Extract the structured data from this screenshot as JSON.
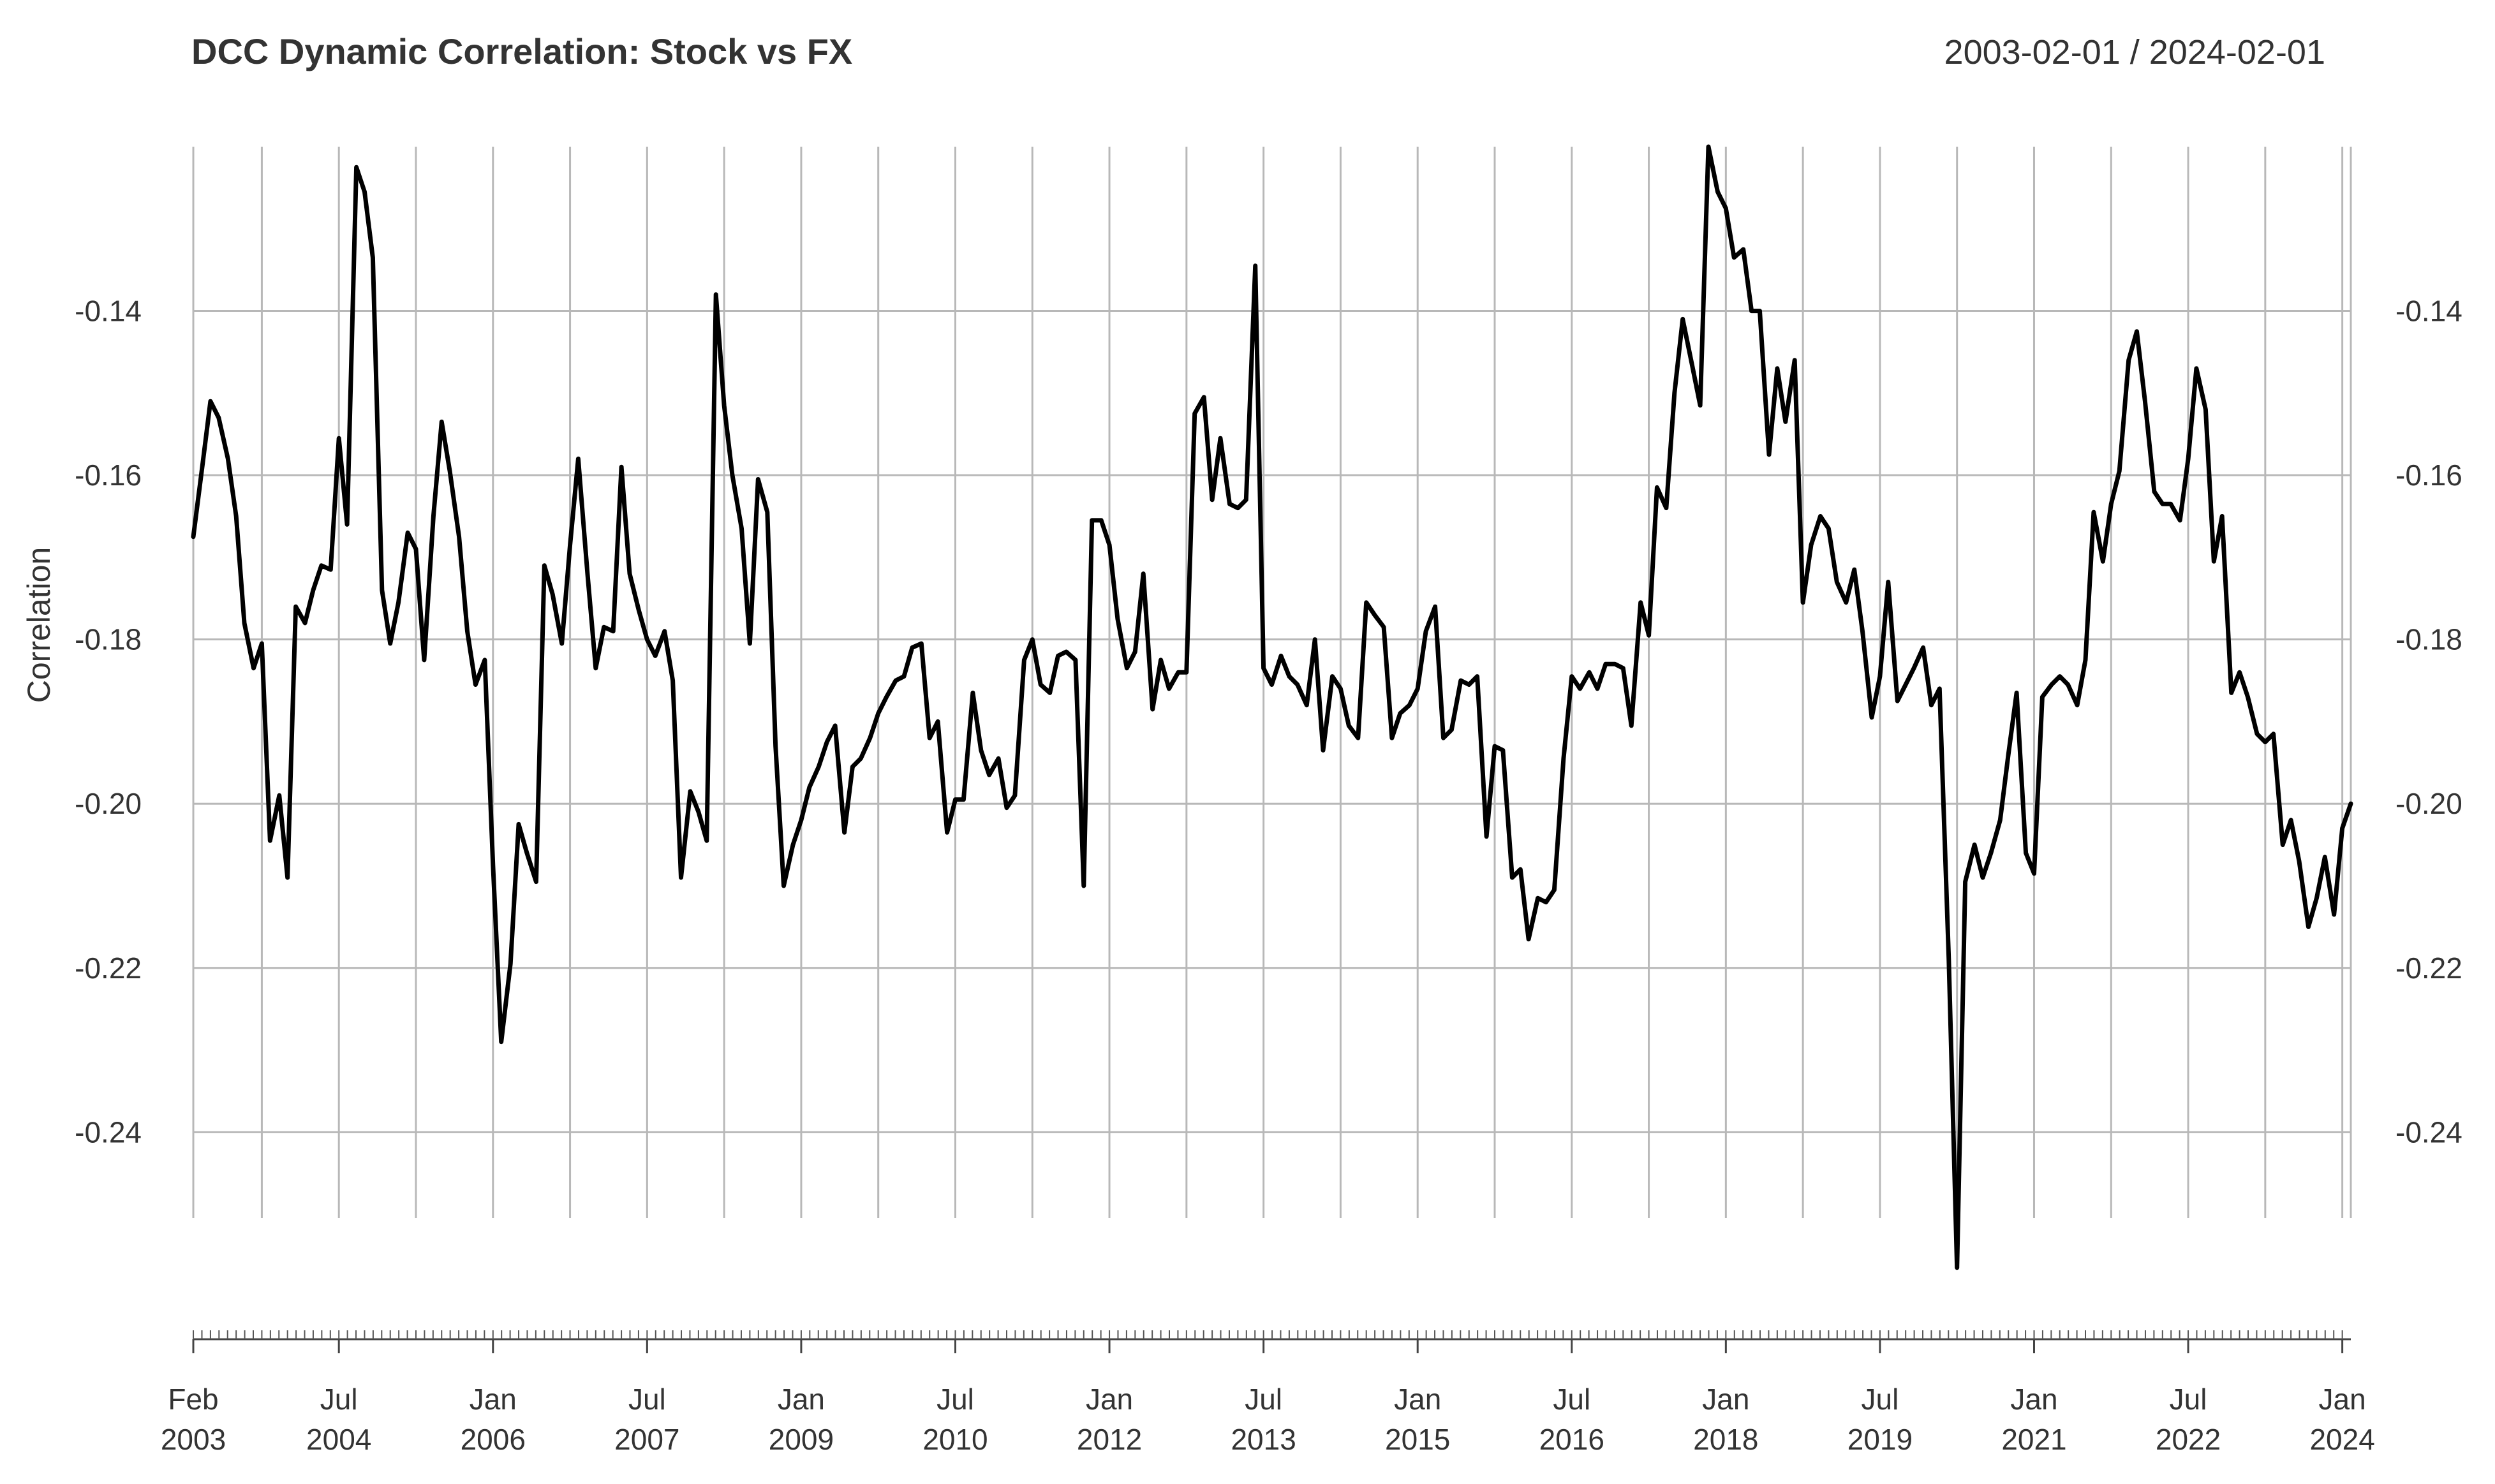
{
  "chart_data": {
    "type": "line",
    "title": "DCC Dynamic Correlation: Stock vs FX",
    "date_range_label": "2003-02-01 / 2024-02-01",
    "ylabel": "Correlation",
    "xlabel": "",
    "x_range": [
      2003.083,
      2024.083
    ],
    "ylim": [
      -0.259,
      -0.12
    ],
    "y_ticks": [
      {
        "value": -0.14,
        "label": "-0.14"
      },
      {
        "value": -0.16,
        "label": "-0.16"
      },
      {
        "value": -0.18,
        "label": "-0.18"
      },
      {
        "value": -0.2,
        "label": "-0.20"
      },
      {
        "value": -0.22,
        "label": "-0.22"
      },
      {
        "value": -0.24,
        "label": "-0.24"
      }
    ],
    "x_ticks": [
      {
        "value": 2003.083,
        "month": "Feb",
        "year": "2003"
      },
      {
        "value": 2004.5,
        "month": "Jul",
        "year": "2004"
      },
      {
        "value": 2006.0,
        "month": "Jan",
        "year": "2006"
      },
      {
        "value": 2007.5,
        "month": "Jul",
        "year": "2007"
      },
      {
        "value": 2009.0,
        "month": "Jan",
        "year": "2009"
      },
      {
        "value": 2010.5,
        "month": "Jul",
        "year": "2010"
      },
      {
        "value": 2012.0,
        "month": "Jan",
        "year": "2012"
      },
      {
        "value": 2013.5,
        "month": "Jul",
        "year": "2013"
      },
      {
        "value": 2015.0,
        "month": "Jan",
        "year": "2015"
      },
      {
        "value": 2016.5,
        "month": "Jul",
        "year": "2016"
      },
      {
        "value": 2018.0,
        "month": "Jan",
        "year": "2018"
      },
      {
        "value": 2019.5,
        "month": "Jul",
        "year": "2019"
      },
      {
        "value": 2021.0,
        "month": "Jan",
        "year": "2021"
      },
      {
        "value": 2022.5,
        "month": "Jul",
        "year": "2022"
      },
      {
        "value": 2024.0,
        "month": "Jan",
        "year": "2024"
      }
    ],
    "grid_x": [
      2003.083,
      2003.75,
      2004.5,
      2005.25,
      2006.0,
      2006.75,
      2007.5,
      2008.25,
      2009.0,
      2009.75,
      2010.5,
      2011.25,
      2012.0,
      2012.75,
      2013.5,
      2014.25,
      2015.0,
      2015.75,
      2016.5,
      2017.25,
      2018.0,
      2018.75,
      2019.5,
      2020.25,
      2021.0,
      2021.75,
      2022.5,
      2023.25,
      2024.0,
      2024.083
    ],
    "grid": true,
    "series": [
      {
        "name": "Correlation",
        "color": "#000000",
        "points": [
          [
            2003.083,
            -0.1675
          ],
          [
            2003.17,
            -0.159
          ],
          [
            2003.25,
            -0.151
          ],
          [
            2003.33,
            -0.153
          ],
          [
            2003.42,
            -0.158
          ],
          [
            2003.5,
            -0.165
          ],
          [
            2003.58,
            -0.178
          ],
          [
            2003.67,
            -0.1835
          ],
          [
            2003.75,
            -0.1805
          ],
          [
            2003.83,
            -0.2045
          ],
          [
            2003.92,
            -0.199
          ],
          [
            2004.0,
            -0.209
          ],
          [
            2004.08,
            -0.176
          ],
          [
            2004.17,
            -0.178
          ],
          [
            2004.25,
            -0.174
          ],
          [
            2004.33,
            -0.171
          ],
          [
            2004.42,
            -0.1715
          ],
          [
            2004.5,
            -0.1555
          ],
          [
            2004.58,
            -0.166
          ],
          [
            2004.67,
            -0.1225
          ],
          [
            2004.75,
            -0.1255
          ],
          [
            2004.83,
            -0.1335
          ],
          [
            2004.92,
            -0.174
          ],
          [
            2005.0,
            -0.1805
          ],
          [
            2005.08,
            -0.1755
          ],
          [
            2005.17,
            -0.167
          ],
          [
            2005.25,
            -0.169
          ],
          [
            2005.33,
            -0.1825
          ],
          [
            2005.42,
            -0.165
          ],
          [
            2005.5,
            -0.1535
          ],
          [
            2005.58,
            -0.1595
          ],
          [
            2005.67,
            -0.1675
          ],
          [
            2005.75,
            -0.179
          ],
          [
            2005.83,
            -0.1855
          ],
          [
            2005.92,
            -0.1825
          ],
          [
            2006.0,
            -0.2075
          ],
          [
            2006.08,
            -0.229
          ],
          [
            2006.17,
            -0.2195
          ],
          [
            2006.25,
            -0.2025
          ],
          [
            2006.33,
            -0.206
          ],
          [
            2006.42,
            -0.2095
          ],
          [
            2006.5,
            -0.171
          ],
          [
            2006.58,
            -0.1745
          ],
          [
            2006.67,
            -0.1805
          ],
          [
            2006.75,
            -0.1685
          ],
          [
            2006.83,
            -0.158
          ],
          [
            2006.92,
            -0.172
          ],
          [
            2007.0,
            -0.1835
          ],
          [
            2007.08,
            -0.1785
          ],
          [
            2007.17,
            -0.179
          ],
          [
            2007.25,
            -0.159
          ],
          [
            2007.33,
            -0.172
          ],
          [
            2007.42,
            -0.1765
          ],
          [
            2007.5,
            -0.18
          ],
          [
            2007.58,
            -0.182
          ],
          [
            2007.67,
            -0.179
          ],
          [
            2007.75,
            -0.185
          ],
          [
            2007.83,
            -0.209
          ],
          [
            2007.92,
            -0.1985
          ],
          [
            2008.0,
            -0.201
          ],
          [
            2008.08,
            -0.2045
          ],
          [
            2008.17,
            -0.138
          ],
          [
            2008.25,
            -0.1515
          ],
          [
            2008.33,
            -0.16
          ],
          [
            2008.42,
            -0.1665
          ],
          [
            2008.5,
            -0.1805
          ],
          [
            2008.58,
            -0.1605
          ],
          [
            2008.67,
            -0.1645
          ],
          [
            2008.75,
            -0.193
          ],
          [
            2008.83,
            -0.21
          ],
          [
            2008.92,
            -0.205
          ],
          [
            2009.0,
            -0.202
          ],
          [
            2009.08,
            -0.198
          ],
          [
            2009.17,
            -0.1955
          ],
          [
            2009.25,
            -0.1925
          ],
          [
            2009.33,
            -0.1905
          ],
          [
            2009.42,
            -0.2035
          ],
          [
            2009.5,
            -0.1955
          ],
          [
            2009.58,
            -0.1945
          ],
          [
            2009.67,
            -0.192
          ],
          [
            2009.75,
            -0.189
          ],
          [
            2009.83,
            -0.187
          ],
          [
            2009.92,
            -0.185
          ],
          [
            2010.0,
            -0.1845
          ],
          [
            2010.08,
            -0.181
          ],
          [
            2010.17,
            -0.1805
          ],
          [
            2010.25,
            -0.192
          ],
          [
            2010.33,
            -0.19
          ],
          [
            2010.42,
            -0.2035
          ],
          [
            2010.5,
            -0.1995
          ],
          [
            2010.58,
            -0.1995
          ],
          [
            2010.67,
            -0.1865
          ],
          [
            2010.75,
            -0.1935
          ],
          [
            2010.83,
            -0.1965
          ],
          [
            2010.92,
            -0.1945
          ],
          [
            2011.0,
            -0.2005
          ],
          [
            2011.08,
            -0.199
          ],
          [
            2011.17,
            -0.1825
          ],
          [
            2011.25,
            -0.18
          ],
          [
            2011.33,
            -0.1855
          ],
          [
            2011.42,
            -0.1865
          ],
          [
            2011.5,
            -0.182
          ],
          [
            2011.58,
            -0.1815
          ],
          [
            2011.67,
            -0.1825
          ],
          [
            2011.75,
            -0.21
          ],
          [
            2011.83,
            -0.1655
          ],
          [
            2011.92,
            -0.1655
          ],
          [
            2012.0,
            -0.1685
          ],
          [
            2012.08,
            -0.1775
          ],
          [
            2012.17,
            -0.1835
          ],
          [
            2012.25,
            -0.1815
          ],
          [
            2012.33,
            -0.172
          ],
          [
            2012.42,
            -0.1885
          ],
          [
            2012.5,
            -0.1825
          ],
          [
            2012.58,
            -0.186
          ],
          [
            2012.67,
            -0.184
          ],
          [
            2012.75,
            -0.184
          ],
          [
            2012.83,
            -0.1525
          ],
          [
            2012.92,
            -0.1505
          ],
          [
            2013.0,
            -0.163
          ],
          [
            2013.08,
            -0.1555
          ],
          [
            2013.17,
            -0.1635
          ],
          [
            2013.25,
            -0.164
          ],
          [
            2013.33,
            -0.163
          ],
          [
            2013.42,
            -0.1345
          ],
          [
            2013.5,
            -0.1835
          ],
          [
            2013.58,
            -0.1855
          ],
          [
            2013.67,
            -0.182
          ],
          [
            2013.75,
            -0.1845
          ],
          [
            2013.83,
            -0.1855
          ],
          [
            2013.92,
            -0.188
          ],
          [
            2014.0,
            -0.18
          ],
          [
            2014.08,
            -0.1935
          ],
          [
            2014.17,
            -0.1845
          ],
          [
            2014.25,
            -0.186
          ],
          [
            2014.33,
            -0.1905
          ],
          [
            2014.42,
            -0.192
          ],
          [
            2014.5,
            -0.1755
          ],
          [
            2014.58,
            -0.177
          ],
          [
            2014.67,
            -0.1785
          ],
          [
            2014.75,
            -0.192
          ],
          [
            2014.83,
            -0.189
          ],
          [
            2014.92,
            -0.188
          ],
          [
            2015.0,
            -0.186
          ],
          [
            2015.08,
            -0.179
          ],
          [
            2015.17,
            -0.176
          ],
          [
            2015.25,
            -0.192
          ],
          [
            2015.33,
            -0.191
          ],
          [
            2015.42,
            -0.185
          ],
          [
            2015.5,
            -0.1855
          ],
          [
            2015.58,
            -0.1845
          ],
          [
            2015.67,
            -0.204
          ],
          [
            2015.75,
            -0.193
          ],
          [
            2015.83,
            -0.1935
          ],
          [
            2015.92,
            -0.209
          ],
          [
            2016.0,
            -0.208
          ],
          [
            2016.08,
            -0.2165
          ],
          [
            2016.17,
            -0.2115
          ],
          [
            2016.25,
            -0.212
          ],
          [
            2016.33,
            -0.2105
          ],
          [
            2016.42,
            -0.1945
          ],
          [
            2016.5,
            -0.1845
          ],
          [
            2016.58,
            -0.186
          ],
          [
            2016.67,
            -0.184
          ],
          [
            2016.75,
            -0.186
          ],
          [
            2016.83,
            -0.183
          ],
          [
            2016.92,
            -0.183
          ],
          [
            2017.0,
            -0.1835
          ],
          [
            2017.08,
            -0.1905
          ],
          [
            2017.17,
            -0.1755
          ],
          [
            2017.25,
            -0.1795
          ],
          [
            2017.33,
            -0.1615
          ],
          [
            2017.42,
            -0.164
          ],
          [
            2017.5,
            -0.15
          ],
          [
            2017.58,
            -0.141
          ],
          [
            2017.67,
            -0.1465
          ],
          [
            2017.75,
            -0.1515
          ],
          [
            2017.83,
            -0.12
          ],
          [
            2017.92,
            -0.1255
          ],
          [
            2018.0,
            -0.1275
          ],
          [
            2018.08,
            -0.1335
          ],
          [
            2018.17,
            -0.1325
          ],
          [
            2018.25,
            -0.14
          ],
          [
            2018.33,
            -0.14
          ],
          [
            2018.42,
            -0.1575
          ],
          [
            2018.5,
            -0.147
          ],
          [
            2018.58,
            -0.1535
          ],
          [
            2018.67,
            -0.146
          ],
          [
            2018.75,
            -0.1755
          ],
          [
            2018.83,
            -0.1685
          ],
          [
            2018.92,
            -0.165
          ],
          [
            2019.0,
            -0.1665
          ],
          [
            2019.08,
            -0.173
          ],
          [
            2019.17,
            -0.1755
          ],
          [
            2019.25,
            -0.1715
          ],
          [
            2019.33,
            -0.179
          ],
          [
            2019.42,
            -0.1895
          ],
          [
            2019.5,
            -0.1845
          ],
          [
            2019.58,
            -0.173
          ],
          [
            2019.67,
            -0.1875
          ],
          [
            2019.75,
            -0.1855
          ],
          [
            2019.83,
            -0.1835
          ],
          [
            2019.92,
            -0.181
          ],
          [
            2020.0,
            -0.188
          ],
          [
            2020.08,
            -0.186
          ],
          [
            2020.17,
            -0.219
          ],
          [
            2020.25,
            -0.2565
          ],
          [
            2020.33,
            -0.2095
          ],
          [
            2020.42,
            -0.205
          ],
          [
            2020.5,
            -0.209
          ],
          [
            2020.58,
            -0.206
          ],
          [
            2020.67,
            -0.202
          ],
          [
            2020.75,
            -0.194
          ],
          [
            2020.83,
            -0.1865
          ],
          [
            2020.92,
            -0.206
          ],
          [
            2021.0,
            -0.2085
          ],
          [
            2021.08,
            -0.187
          ],
          [
            2021.17,
            -0.1855
          ],
          [
            2021.25,
            -0.1845
          ],
          [
            2021.33,
            -0.1855
          ],
          [
            2021.42,
            -0.188
          ],
          [
            2021.5,
            -0.1825
          ],
          [
            2021.58,
            -0.1645
          ],
          [
            2021.67,
            -0.1705
          ],
          [
            2021.75,
            -0.1635
          ],
          [
            2021.83,
            -0.1595
          ],
          [
            2021.92,
            -0.146
          ],
          [
            2022.0,
            -0.1425
          ],
          [
            2022.08,
            -0.151
          ],
          [
            2022.17,
            -0.162
          ],
          [
            2022.25,
            -0.1635
          ],
          [
            2022.33,
            -0.1635
          ],
          [
            2022.42,
            -0.1655
          ],
          [
            2022.5,
            -0.158
          ],
          [
            2022.58,
            -0.147
          ],
          [
            2022.67,
            -0.152
          ],
          [
            2022.75,
            -0.1705
          ],
          [
            2022.83,
            -0.165
          ],
          [
            2022.92,
            -0.1865
          ],
          [
            2023.0,
            -0.184
          ],
          [
            2023.08,
            -0.187
          ],
          [
            2023.17,
            -0.1915
          ],
          [
            2023.25,
            -0.1925
          ],
          [
            2023.33,
            -0.1915
          ],
          [
            2023.42,
            -0.205
          ],
          [
            2023.5,
            -0.202
          ],
          [
            2023.58,
            -0.207
          ],
          [
            2023.67,
            -0.215
          ],
          [
            2023.75,
            -0.2115
          ],
          [
            2023.83,
            -0.2065
          ],
          [
            2023.92,
            -0.2135
          ],
          [
            2024.0,
            -0.203
          ],
          [
            2024.083,
            -0.2
          ]
        ]
      }
    ]
  }
}
